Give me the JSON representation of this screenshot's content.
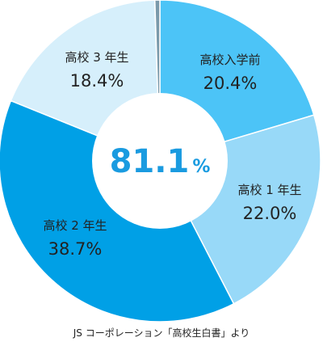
{
  "chart_data": {
    "type": "pie",
    "style": "donut",
    "center_label": {
      "value": "81.1",
      "unit": "%"
    },
    "slices": [
      {
        "label": "高校入学前",
        "value": 20.4,
        "value_label": "20.4%",
        "color": "#4cc4f7"
      },
      {
        "label": "高校 1 年生",
        "value": 22.0,
        "value_label": "22.0%",
        "color": "#98d9f8"
      },
      {
        "label": "高校 2 年生",
        "value": 38.7,
        "value_label": "38.7%",
        "color": "#00a0e6"
      },
      {
        "label": "高校 3 年生",
        "value": 18.4,
        "value_label": "18.4%",
        "color": "#d6effb"
      },
      {
        "label": "",
        "value": 0.5,
        "value_label": "",
        "color": "#7a9aab"
      }
    ],
    "center_color": "#1a9be0"
  },
  "source": "JS コーポレーション「高校生白書」より"
}
